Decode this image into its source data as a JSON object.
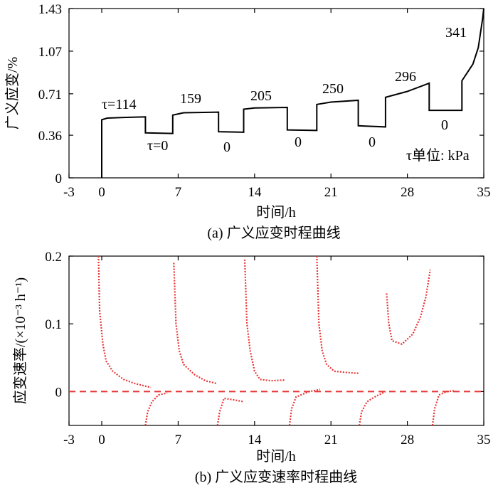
{
  "chart_data": [
    {
      "type": "line",
      "caption": "(a) 广义应变时程曲线",
      "xlabel": "时间/h",
      "ylabel": "广义应变/%",
      "xlim": [
        -3,
        35
      ],
      "ylim": [
        0,
        1.43
      ],
      "xticks": [
        "-3",
        "0",
        "7",
        "14",
        "21",
        "28",
        "35"
      ],
      "yticks": [
        "0",
        "0.36",
        "0.71",
        "1.07",
        "1.43"
      ],
      "unit_note": "τ单位: kPa",
      "annotations": [
        "τ=114",
        "τ=0",
        "159",
        "0",
        "205",
        "0",
        "250",
        "0",
        "296",
        "0",
        "341"
      ],
      "series": [
        {
          "color": "#000000",
          "points": [
            [
              0,
              0
            ],
            [
              0,
              0.49
            ],
            [
              0.5,
              0.505
            ],
            [
              2,
              0.51
            ],
            [
              4,
              0.515
            ],
            [
              4,
              0.38
            ],
            [
              6.5,
              0.375
            ],
            [
              6.5,
              0.53
            ],
            [
              7.5,
              0.55
            ],
            [
              10.7,
              0.555
            ],
            [
              10.7,
              0.39
            ],
            [
              13,
              0.385
            ],
            [
              13,
              0.58
            ],
            [
              14,
              0.59
            ],
            [
              17,
              0.595
            ],
            [
              17,
              0.405
            ],
            [
              19.7,
              0.4
            ],
            [
              19.7,
              0.62
            ],
            [
              21,
              0.64
            ],
            [
              23.5,
              0.655
            ],
            [
              23.5,
              0.44
            ],
            [
              26,
              0.43
            ],
            [
              26,
              0.68
            ],
            [
              28,
              0.73
            ],
            [
              30,
              0.8
            ],
            [
              30,
              0.57
            ],
            [
              33,
              0.57
            ],
            [
              33,
              0.82
            ],
            [
              34,
              0.96
            ],
            [
              34.5,
              1.1
            ],
            [
              34.9,
              1.35
            ],
            [
              35,
              1.43
            ]
          ]
        }
      ]
    },
    {
      "type": "scatter",
      "caption": "(b) 广义应变速率时程曲线",
      "xlabel": "时间/h",
      "ylabel": "应变速率/(×10⁻³ h⁻¹)",
      "xlim": [
        -3,
        35
      ],
      "ylim": [
        -0.05,
        0.2
      ],
      "xticks": [
        "-3",
        "0",
        "7",
        "14",
        "21",
        "28",
        "35"
      ],
      "yticks": [
        "0",
        "0.1",
        "0.2"
      ],
      "zero_line": 0,
      "series": [
        {
          "color": "#e83535",
          "segments": [
            [
              [
                -0.3,
                0.2
              ],
              [
                -0.2,
                0.12
              ],
              [
                0.1,
                0.07
              ],
              [
                0.4,
                0.045
              ],
              [
                1,
                0.03
              ],
              [
                2,
                0.018
              ],
              [
                3,
                0.012
              ],
              [
                4.5,
                0.006
              ]
            ],
            [
              [
                4,
                -0.05
              ],
              [
                4.2,
                -0.03
              ],
              [
                4.6,
                -0.015
              ],
              [
                5.2,
                -0.005
              ],
              [
                6,
                -0.002
              ]
            ],
            [
              [
                6.6,
                0.19
              ],
              [
                6.8,
                0.1
              ],
              [
                7.1,
                0.06
              ],
              [
                7.5,
                0.04
              ],
              [
                8.5,
                0.025
              ],
              [
                9.5,
                0.016
              ],
              [
                10.5,
                0.012
              ]
            ],
            [
              [
                10.6,
                -0.05
              ],
              [
                10.8,
                -0.03
              ],
              [
                11.2,
                -0.01
              ],
              [
                12,
                -0.012
              ],
              [
                13,
                -0.015
              ]
            ],
            [
              [
                13.1,
                0.195
              ],
              [
                13.3,
                0.1
              ],
              [
                13.6,
                0.06
              ],
              [
                14,
                0.03
              ],
              [
                14.5,
                0.018
              ],
              [
                15.5,
                0.016
              ],
              [
                16.8,
                0.017
              ]
            ],
            [
              [
                17.2,
                -0.05
              ],
              [
                17.4,
                -0.025
              ],
              [
                17.8,
                -0.008
              ],
              [
                19,
                0.0
              ],
              [
                20,
                0.003
              ]
            ],
            [
              [
                19.7,
                0.2
              ],
              [
                19.9,
                0.1
              ],
              [
                20.2,
                0.06
              ],
              [
                20.6,
                0.04
              ],
              [
                21.3,
                0.03
              ],
              [
                22.5,
                0.028
              ],
              [
                23.5,
                0.027
              ]
            ],
            [
              [
                23.6,
                -0.05
              ],
              [
                23.8,
                -0.03
              ],
              [
                24.3,
                -0.015
              ],
              [
                25,
                -0.008
              ],
              [
                26,
                0.0
              ]
            ],
            [
              [
                26.1,
                0.145
              ],
              [
                26.3,
                0.1
              ],
              [
                26.6,
                0.075
              ],
              [
                27.5,
                0.07
              ],
              [
                28.5,
                0.085
              ],
              [
                29.2,
                0.11
              ],
              [
                29.7,
                0.14
              ],
              [
                30.1,
                0.18
              ]
            ],
            [
              [
                30.3,
                -0.05
              ],
              [
                30.5,
                -0.025
              ],
              [
                30.9,
                -0.005
              ],
              [
                31.6,
                0.0
              ],
              [
                32.3,
                0.001
              ]
            ]
          ]
        }
      ]
    }
  ]
}
